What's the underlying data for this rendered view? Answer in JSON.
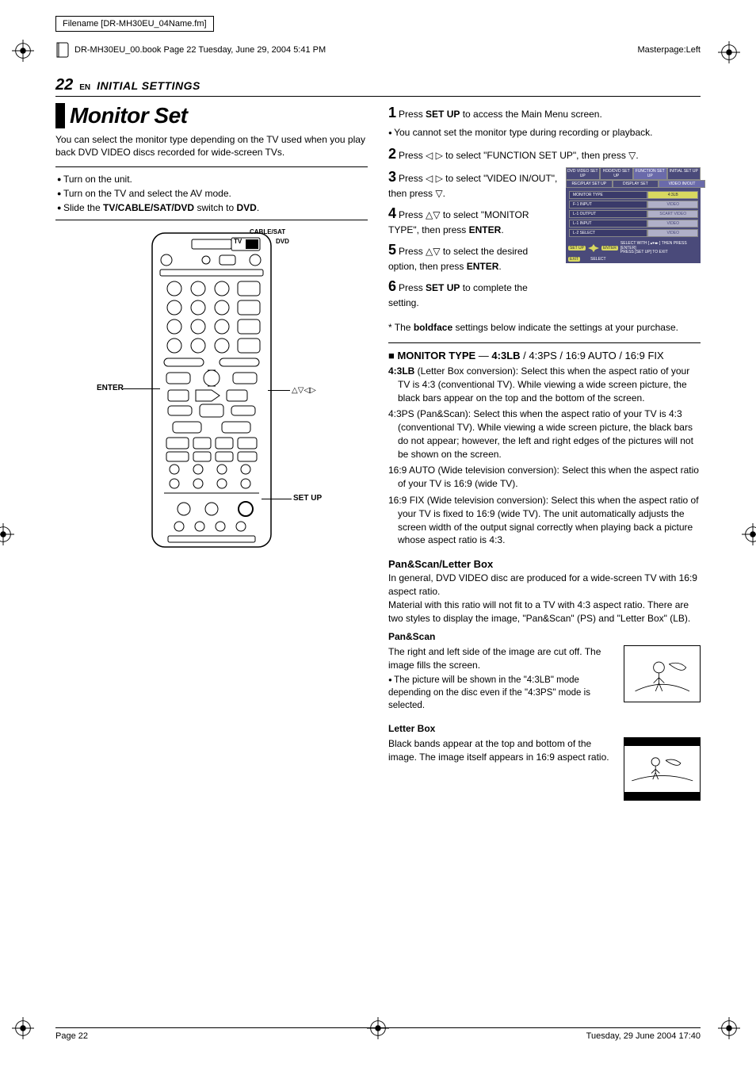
{
  "meta": {
    "filename_label": "Filename [DR-MH30EU_04Name.fm]",
    "book_line": "DR-MH30EU_00.book  Page 22  Tuesday, June 29, 2004  5:41 PM",
    "masterpage": "Masterpage:Left",
    "footer_left": "Page 22",
    "footer_right": "Tuesday, 29 June 2004  17:40"
  },
  "header": {
    "page_num": "22",
    "lang": "EN",
    "section": "INITIAL SETTINGS"
  },
  "left": {
    "title": "Monitor Set",
    "intro": "You can select the monitor type depending on the TV used when you play back DVD VIDEO discs recorded for wide-screen TVs.",
    "prep": [
      "Turn on the unit.",
      "Turn on the TV and select the AV mode.",
      "Slide the <b>TV/CABLE/SAT/DVD</b> switch to <b>DVD</b>."
    ],
    "labels": {
      "enter": "ENTER",
      "setup": "SET UP",
      "arrows": "△▽◁▷",
      "switch_top": "CABLE/SAT",
      "switch_l": "TV",
      "switch_r": "DVD"
    }
  },
  "right": {
    "steps": [
      {
        "n": "1",
        "html": "Press <b>SET UP</b> to access the Main Menu screen."
      },
      {
        "n": "2",
        "html": "Press ◁ ▷ to select \"FUNCTION SET UP\", then press ▽."
      },
      {
        "n": "3",
        "html": "Press ◁ ▷ to select \"VIDEO IN/OUT\", then press ▽."
      },
      {
        "n": "4",
        "html": "Press △▽ to select \"MONITOR TYPE\", then press <b>ENTER</b>."
      },
      {
        "n": "5",
        "html": "Press △▽ to select the desired option, then press <b>ENTER</b>."
      },
      {
        "n": "6",
        "html": "Press <b>SET UP</b> to complete the setting."
      }
    ],
    "step1_note": "You cannot set the monitor type during recording or playback.",
    "osd": {
      "tabs1": [
        "DVD VIDEO SET UP",
        "HDD/DVD SET UP",
        "FUNCTION SET UP",
        "INITIAL SET UP"
      ],
      "tabs2": [
        "REC/PLAY SET UP",
        "DISPLAY SET",
        "VIDEO IN/OUT"
      ],
      "rows": [
        {
          "label": "MONITOR TYPE",
          "value": "4:3LB",
          "hl": true
        },
        {
          "label": "F-1 INPUT",
          "value": "VIDEO",
          "hl": false
        },
        {
          "label": "L-1 OUTPUT",
          "value": "SCART VIDEO",
          "hl": false
        },
        {
          "label": "L-1 INPUT",
          "value": "VIDEO",
          "hl": false
        },
        {
          "label": "L-2 SELECT",
          "value": "VIDEO",
          "hl": false
        }
      ],
      "foot_btn1": "SET UP",
      "foot_btn2": "ENTER",
      "foot_btn3": "EXIT",
      "foot_txt1": "SELECT WITH [ ▴▾◂▸ ] THEN PRESS [ENTER]",
      "foot_txt2": "PRESS [SET UP] TO EXIT",
      "select": "SELECT"
    },
    "footnote": "The <b>boldface</b> settings below indicate the settings at your purchase.",
    "monitor_type": {
      "heading_pre": "MONITOR TYPE",
      "heading_sep": " — ",
      "heading_values": "<b>4:3LB</b> / 4:3PS / 16:9 AUTO / 16:9 FIX",
      "items": [
        {
          "key": "4:3LB",
          "bold": true,
          "txt": " (Letter Box conversion): Select this when the aspect ratio of your TV is 4:3 (conventional TV). While viewing a wide screen picture, the black bars appear on the top and the bottom of the screen."
        },
        {
          "key": "4:3PS",
          "bold": false,
          "txt": " (Pan&Scan): Select this when the aspect ratio of your TV is 4:3 (conventional TV). While viewing a wide screen picture, the black bars do not appear; however, the left and right edges of the pictures will not be shown on the screen."
        },
        {
          "key": "16:9 AUTO",
          "bold": false,
          "txt": " (Wide television conversion): Select this when the aspect ratio of your TV is 16:9 (wide TV)."
        },
        {
          "key": "16:9 FIX",
          "bold": false,
          "txt": " (Wide television conversion): Select this when the aspect ratio of your TV is fixed to 16:9 (wide TV). The unit automatically adjusts the screen width of the output signal correctly when playing back a picture whose aspect ratio is 4:3."
        }
      ]
    },
    "panscan": {
      "heading": "Pan&Scan/Letter Box",
      "p1": "In general, DVD VIDEO disc are produced for a wide-screen TV with 16:9 aspect ratio.",
      "p2": "Material with this ratio will not fit to a TV with 4:3 aspect ratio. There are two styles to display the image, \"Pan&Scan\" (PS) and \"Letter Box\" (LB).",
      "ps_head": "Pan&Scan",
      "ps_txt": "The right and left side of the image are cut off. The image fills the screen.",
      "ps_note": "The picture will be shown in the \"4:3LB\" mode depending on the disc even if the \"4:3PS\" mode is selected.",
      "lb_head": "Letter Box",
      "lb_txt": "Black bands appear at the top and bottom of the image. The image itself appears in 16:9 aspect ratio."
    }
  }
}
